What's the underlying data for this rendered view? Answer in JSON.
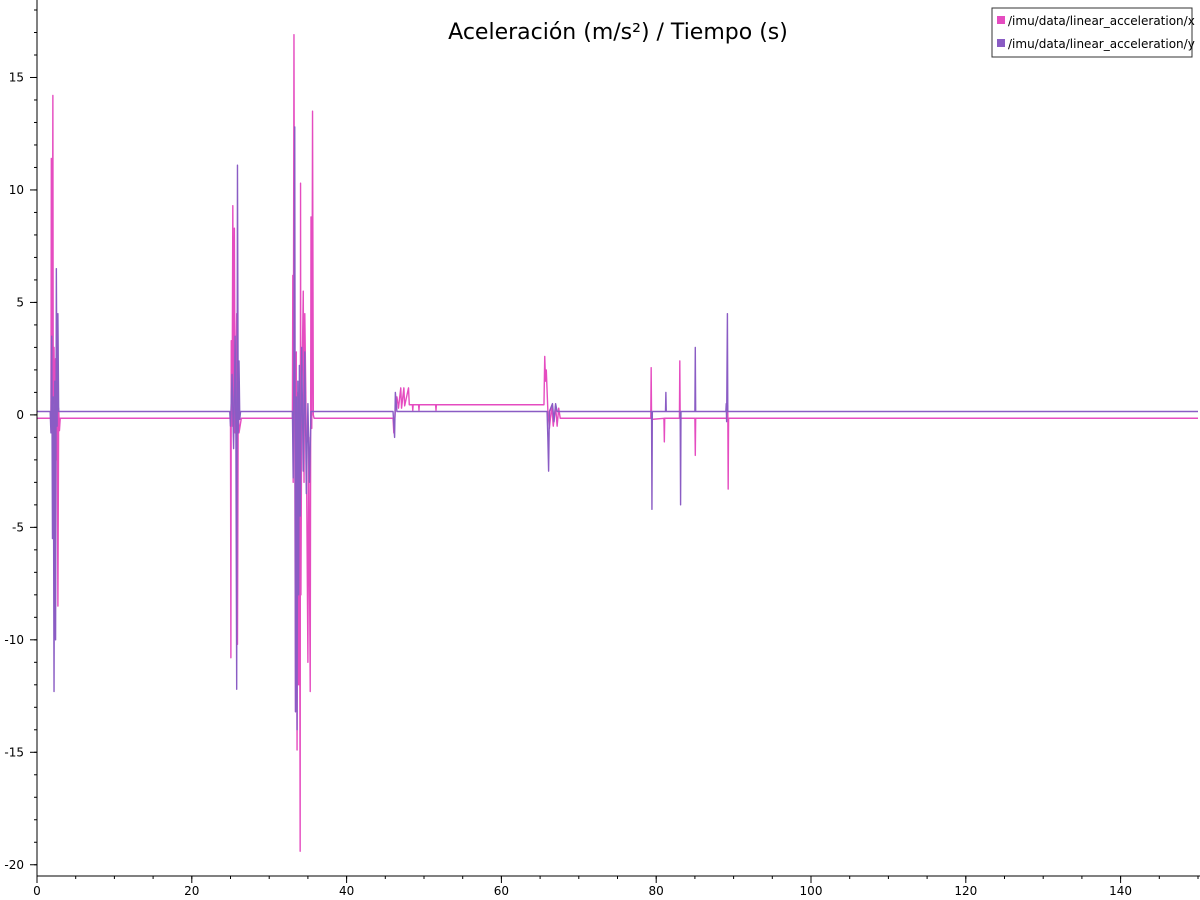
{
  "colors": {
    "background": "#ffffff",
    "axis": "#000000",
    "series_x": "#e54cc0",
    "series_y": "#8a5cc4"
  },
  "chart_data": {
    "type": "line",
    "title": "Aceleración (m/s²) / Tiempo (s)",
    "xlabel": "",
    "ylabel": "",
    "xlim": [
      0,
      150
    ],
    "ylim": [
      -20.5,
      18
    ],
    "x_ticks": [
      0,
      20,
      40,
      60,
      80,
      100,
      120,
      140
    ],
    "y_ticks": [
      -20,
      -15,
      -10,
      -5,
      0,
      5,
      10,
      15
    ],
    "x_minor_step": 5,
    "y_minor_step": 1,
    "grid": false,
    "legend_position": "top-right",
    "series": [
      {
        "name": "/imu/data/linear_acceleration/x",
        "color": "#e54cc0",
        "points": [
          [
            0,
            -0.15
          ],
          [
            1.8,
            -0.15
          ],
          [
            1.85,
            11.4
          ],
          [
            1.9,
            -0.8
          ],
          [
            2.0,
            6.0
          ],
          [
            2.05,
            14.2
          ],
          [
            2.1,
            0.5
          ],
          [
            2.2,
            3.0
          ],
          [
            2.3,
            -0.8
          ],
          [
            2.4,
            2.5
          ],
          [
            2.5,
            -2.0
          ],
          [
            2.6,
            1.0
          ],
          [
            2.7,
            -8.5
          ],
          [
            2.8,
            0.3
          ],
          [
            2.9,
            -0.7
          ],
          [
            3.0,
            -0.15
          ],
          [
            25.0,
            -0.15
          ],
          [
            25.05,
            -10.8
          ],
          [
            25.1,
            3.3
          ],
          [
            25.2,
            -0.5
          ],
          [
            25.3,
            9.3
          ],
          [
            25.4,
            -1.0
          ],
          [
            25.5,
            8.3
          ],
          [
            25.6,
            -0.8
          ],
          [
            25.8,
            4.5
          ],
          [
            25.9,
            -10.2
          ],
          [
            26.0,
            0.8
          ],
          [
            26.1,
            -0.8
          ],
          [
            26.4,
            -0.15
          ],
          [
            33.0,
            -0.15
          ],
          [
            33.05,
            6.2
          ],
          [
            33.1,
            -3.0
          ],
          [
            33.2,
            16.9
          ],
          [
            33.3,
            -0.5
          ],
          [
            33.4,
            -13.2
          ],
          [
            33.5,
            2.8
          ],
          [
            33.6,
            -14.9
          ],
          [
            33.7,
            1.0
          ],
          [
            33.8,
            -12.0
          ],
          [
            33.9,
            0.5
          ],
          [
            34.0,
            -19.4
          ],
          [
            34.05,
            10.3
          ],
          [
            34.1,
            -8.0
          ],
          [
            34.2,
            0.5
          ],
          [
            34.4,
            5.5
          ],
          [
            34.5,
            -3.0
          ],
          [
            34.6,
            4.5
          ],
          [
            34.8,
            -1.0
          ],
          [
            35.0,
            -11.0
          ],
          [
            35.1,
            -1.0
          ],
          [
            35.3,
            -12.3
          ],
          [
            35.4,
            8.8
          ],
          [
            35.5,
            -0.6
          ],
          [
            35.6,
            13.5
          ],
          [
            35.7,
            0.0
          ],
          [
            35.8,
            -0.15
          ],
          [
            46.0,
            -0.15
          ],
          [
            46.1,
            -0.8
          ],
          [
            46.3,
            0.2
          ],
          [
            46.5,
            0.8
          ],
          [
            46.7,
            0.3
          ],
          [
            47.0,
            1.2
          ],
          [
            47.1,
            0.3
          ],
          [
            47.4,
            1.2
          ],
          [
            47.5,
            0.4
          ],
          [
            48.0,
            1.2
          ],
          [
            48.1,
            0.45
          ],
          [
            48.5,
            0.45
          ],
          [
            48.55,
            0.2
          ],
          [
            48.6,
            0.45
          ],
          [
            49.3,
            0.45
          ],
          [
            49.35,
            0.2
          ],
          [
            49.4,
            0.45
          ],
          [
            51.5,
            0.45
          ],
          [
            51.55,
            0.2
          ],
          [
            51.6,
            0.45
          ],
          [
            65.5,
            0.45
          ],
          [
            65.6,
            2.6
          ],
          [
            65.7,
            1.5
          ],
          [
            65.8,
            2.0
          ],
          [
            66.0,
            0.2
          ],
          [
            66.2,
            -0.6
          ],
          [
            66.5,
            0.4
          ],
          [
            66.7,
            -0.5
          ],
          [
            67.0,
            0.4
          ],
          [
            67.2,
            -0.5
          ],
          [
            67.4,
            0.3
          ],
          [
            67.6,
            -0.15
          ],
          [
            79.3,
            -0.15
          ],
          [
            79.35,
            2.1
          ],
          [
            79.4,
            -0.2
          ],
          [
            81.0,
            -0.15
          ],
          [
            81.05,
            -1.2
          ],
          [
            81.1,
            -0.15
          ],
          [
            83.0,
            -0.15
          ],
          [
            83.05,
            2.4
          ],
          [
            83.1,
            -0.15
          ],
          [
            85.0,
            -0.15
          ],
          [
            85.05,
            -1.8
          ],
          [
            85.1,
            -0.15
          ],
          [
            89.2,
            -0.15
          ],
          [
            89.25,
            0.4
          ],
          [
            89.3,
            -3.3
          ],
          [
            89.35,
            -0.15
          ],
          [
            150,
            -0.15
          ]
        ]
      },
      {
        "name": "/imu/data/linear_acceleration/y",
        "color": "#8a5cc4",
        "points": [
          [
            0,
            0.15
          ],
          [
            1.7,
            0.15
          ],
          [
            1.8,
            -0.8
          ],
          [
            1.9,
            3.5
          ],
          [
            2.0,
            -5.5
          ],
          [
            2.1,
            0.8
          ],
          [
            2.2,
            -12.3
          ],
          [
            2.3,
            1.5
          ],
          [
            2.4,
            -10.0
          ],
          [
            2.5,
            6.5
          ],
          [
            2.6,
            -0.5
          ],
          [
            2.7,
            4.5
          ],
          [
            2.8,
            0.15
          ],
          [
            24.9,
            0.15
          ],
          [
            25.0,
            -0.5
          ],
          [
            25.2,
            1.8
          ],
          [
            25.4,
            -1.5
          ],
          [
            25.6,
            3.5
          ],
          [
            25.7,
            -1.0
          ],
          [
            25.8,
            -12.2
          ],
          [
            25.9,
            11.1
          ],
          [
            26.0,
            -0.8
          ],
          [
            26.1,
            2.4
          ],
          [
            26.2,
            -0.2
          ],
          [
            26.3,
            0.15
          ],
          [
            33.0,
            0.15
          ],
          [
            33.1,
            -2.8
          ],
          [
            33.2,
            3.0
          ],
          [
            33.3,
            12.8
          ],
          [
            33.4,
            -13.2
          ],
          [
            33.5,
            0.8
          ],
          [
            33.6,
            -14.0
          ],
          [
            33.7,
            1.5
          ],
          [
            33.8,
            -8.0
          ],
          [
            33.9,
            2.2
          ],
          [
            34.0,
            -4.5
          ],
          [
            34.2,
            3.0
          ],
          [
            34.4,
            -2.5
          ],
          [
            34.6,
            2.8
          ],
          [
            34.8,
            -3.5
          ],
          [
            35.0,
            0.5
          ],
          [
            35.2,
            -3.0
          ],
          [
            35.4,
            0.15
          ],
          [
            46.0,
            0.15
          ],
          [
            46.2,
            -1.0
          ],
          [
            46.3,
            1.0
          ],
          [
            46.5,
            0.15
          ],
          [
            65.9,
            0.15
          ],
          [
            66.0,
            -1.0
          ],
          [
            66.1,
            -2.5
          ],
          [
            66.2,
            0.15
          ],
          [
            66.6,
            0.5
          ],
          [
            66.8,
            -0.3
          ],
          [
            67.0,
            0.5
          ],
          [
            67.2,
            0.15
          ],
          [
            79.4,
            0.15
          ],
          [
            79.45,
            -4.2
          ],
          [
            79.5,
            0.15
          ],
          [
            81.2,
            0.15
          ],
          [
            81.25,
            1.0
          ],
          [
            81.3,
            0.15
          ],
          [
            83.1,
            0.15
          ],
          [
            83.15,
            -4.0
          ],
          [
            83.2,
            0.15
          ],
          [
            85.0,
            0.15
          ],
          [
            85.05,
            3.0
          ],
          [
            85.1,
            0.15
          ],
          [
            89.0,
            0.15
          ],
          [
            89.05,
            0.5
          ],
          [
            89.1,
            -0.3
          ],
          [
            89.2,
            4.5
          ],
          [
            89.25,
            0.15
          ],
          [
            150,
            0.15
          ]
        ]
      }
    ]
  }
}
